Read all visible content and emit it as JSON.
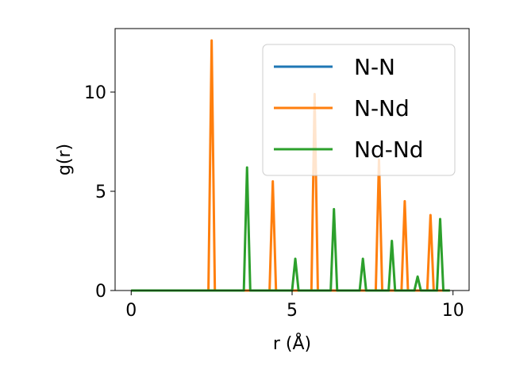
{
  "chart_data": {
    "type": "line",
    "title": "",
    "xlabel": "r (Å)",
    "ylabel": "g(r)",
    "xlim": [
      -0.5,
      10.5
    ],
    "ylim": [
      0,
      13.2
    ],
    "xticks": [
      0,
      5,
      10
    ],
    "yticks": [
      0,
      5,
      10
    ],
    "grid": false,
    "legend_position": "top-right",
    "series": [
      {
        "name": "N-N",
        "color": "#1f77b4",
        "points": [
          [
            0,
            0
          ],
          [
            9.9,
            0
          ]
        ]
      },
      {
        "name": "N-Nd",
        "color": "#ff7f0e",
        "points": [
          [
            0,
            0
          ],
          [
            2.4,
            0
          ],
          [
            2.5,
            12.6
          ],
          [
            2.6,
            0
          ],
          [
            4.3,
            0
          ],
          [
            4.4,
            5.5
          ],
          [
            4.5,
            0
          ],
          [
            5.6,
            0
          ],
          [
            5.7,
            9.9
          ],
          [
            5.8,
            0
          ],
          [
            7.6,
            0
          ],
          [
            7.7,
            6.6
          ],
          [
            7.8,
            0
          ],
          [
            8.4,
            0
          ],
          [
            8.5,
            4.5
          ],
          [
            8.6,
            0
          ],
          [
            9.2,
            0
          ],
          [
            9.3,
            3.8
          ],
          [
            9.4,
            0
          ],
          [
            9.9,
            0
          ]
        ]
      },
      {
        "name": "Nd-Nd",
        "color": "#2ca02c",
        "points": [
          [
            0,
            0
          ],
          [
            3.5,
            0
          ],
          [
            3.6,
            6.2
          ],
          [
            3.7,
            0
          ],
          [
            5.0,
            0
          ],
          [
            5.1,
            1.6
          ],
          [
            5.2,
            0
          ],
          [
            6.2,
            0
          ],
          [
            6.3,
            4.1
          ],
          [
            6.4,
            0
          ],
          [
            7.1,
            0
          ],
          [
            7.2,
            1.6
          ],
          [
            7.3,
            0
          ],
          [
            8.0,
            0
          ],
          [
            8.1,
            2.5
          ],
          [
            8.2,
            0
          ],
          [
            8.8,
            0
          ],
          [
            8.9,
            0.7
          ],
          [
            9.0,
            0
          ],
          [
            9.5,
            0
          ],
          [
            9.6,
            3.6
          ],
          [
            9.7,
            0
          ],
          [
            9.9,
            0
          ]
        ]
      }
    ]
  }
}
